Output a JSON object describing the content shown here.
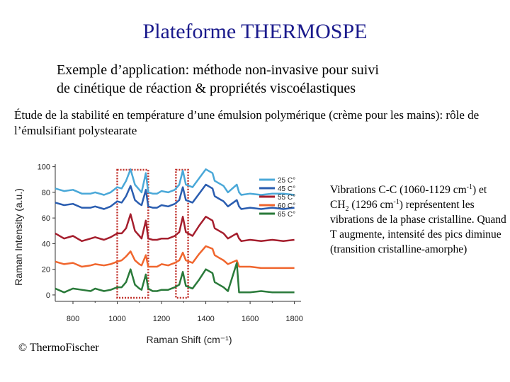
{
  "slide": {
    "title": "Plateforme  THERMOSPE",
    "subtitle_line1": "Exemple d’application: méthode non-invasive pour suivi",
    "subtitle_line2": "de cinétique de réaction & propriétés viscoélastiques",
    "context": "Étude de la stabilité en température d’une émulsion polymérique (crème pour les mains): rôle de l’émulsifiant polystearate",
    "note": {
      "part1": "Vibrations C-C (1060-1129 cm",
      "sup1": "-1",
      "part2": ") et CH",
      "sub1": "2",
      "part3": " (1296 cm",
      "sup2": "-1",
      "part4": ") représentent les vibrations de la phase cristalline. Quand T augmente, intensité des pics diminue (transition cristalline-amorphe)"
    },
    "copyright": "© ThermoFischer"
  },
  "chart_data": {
    "type": "line",
    "xlabel": "Raman Shift (cm⁻¹)",
    "ylabel": "Raman Intensity (a.u.)",
    "xlim": [
      720,
      1830
    ],
    "ylim": [
      -5,
      102
    ],
    "xticks": [
      800,
      1000,
      1200,
      1400,
      1600,
      1800
    ],
    "yticks": [
      0,
      20,
      40,
      60,
      80,
      100
    ],
    "legend_position": "top-right",
    "highlight_regions": [
      [
        1000,
        1140
      ],
      [
        1265,
        1320
      ]
    ],
    "x": [
      720,
      760,
      800,
      840,
      880,
      900,
      940,
      970,
      1000,
      1020,
      1040,
      1060,
      1080,
      1100,
      1110,
      1129,
      1140,
      1160,
      1180,
      1200,
      1230,
      1260,
      1280,
      1296,
      1310,
      1340,
      1370,
      1400,
      1430,
      1440,
      1460,
      1480,
      1500,
      1540,
      1550,
      1560,
      1600,
      1650,
      1700,
      1750,
      1800
    ],
    "series": [
      {
        "name": "25 C°",
        "color": "#4aa8d8",
        "values": [
          83,
          81,
          82,
          79,
          79,
          80,
          78,
          80,
          84,
          83,
          89,
          98,
          86,
          82,
          80,
          95,
          80,
          79,
          79,
          81,
          80,
          82,
          86,
          97,
          86,
          84,
          91,
          98,
          95,
          89,
          87,
          85,
          80,
          86,
          80,
          78,
          79,
          78,
          79,
          79,
          78
        ]
      },
      {
        "name": "45 C°",
        "color": "#2a5db0",
        "values": [
          72,
          70,
          71,
          68,
          68,
          69,
          67,
          69,
          73,
          72,
          77,
          85,
          74,
          71,
          70,
          82,
          69,
          68,
          68,
          70,
          69,
          71,
          74,
          84,
          74,
          72,
          79,
          86,
          83,
          77,
          75,
          73,
          69,
          74,
          69,
          67,
          68,
          67,
          68,
          67,
          68
        ]
      },
      {
        "name": "55 C°",
        "color": "#a51e2d",
        "values": [
          48,
          44,
          46,
          42,
          44,
          45,
          43,
          45,
          48,
          48,
          52,
          63,
          50,
          46,
          44,
          58,
          44,
          43,
          43,
          44,
          44,
          46,
          49,
          61,
          49,
          46,
          54,
          61,
          58,
          52,
          50,
          48,
          44,
          48,
          44,
          42,
          43,
          42,
          43,
          42,
          43
        ]
      },
      {
        "name": "60 C°",
        "color": "#f0662e",
        "values": [
          26,
          24,
          25,
          22,
          23,
          24,
          23,
          24,
          26,
          27,
          30,
          34,
          27,
          24,
          23,
          31,
          22,
          22,
          22,
          24,
          23,
          25,
          27,
          33,
          27,
          25,
          32,
          38,
          36,
          31,
          29,
          27,
          24,
          27,
          22,
          22,
          22,
          21,
          21,
          21,
          21
        ]
      },
      {
        "name": "65 C°",
        "color": "#2a7a3a",
        "values": [
          5,
          2,
          5,
          4,
          3,
          5,
          3,
          4,
          6,
          6,
          10,
          20,
          8,
          5,
          4,
          16,
          5,
          3,
          3,
          4,
          4,
          6,
          8,
          18,
          7,
          5,
          12,
          20,
          17,
          10,
          8,
          6,
          3,
          25,
          2,
          2,
          2,
          3,
          2,
          2,
          2
        ]
      }
    ]
  }
}
